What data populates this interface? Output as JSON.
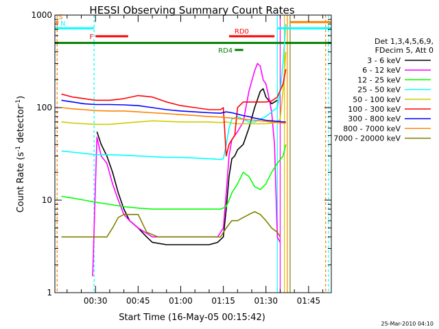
{
  "chart_data": {
    "type": "line",
    "title": "HESSI Observing Summary Count Rates",
    "xlabel": "Start Time (16-May-05 00:15:42)",
    "ylabel": "Count Rate (s",
    "ylabel_sup": "-1",
    "ylabel_tail": " detector",
    "ylabel_sup2": "-1",
    "ylabel_end": ")",
    "yscale": "log",
    "ylim": [
      1,
      1000
    ],
    "ytick_labels": [
      "1",
      "10",
      "100",
      "1000"
    ],
    "ytick_values": [
      1,
      10,
      100,
      1000
    ],
    "xlim": [
      15.7,
      113
    ],
    "xtick_labels": [
      "00:30",
      "00:45",
      "01:00",
      "01:15",
      "01:30",
      "01:45"
    ],
    "xtick_values": [
      30,
      45,
      60,
      75,
      90,
      105
    ],
    "grid": false,
    "legend_position": "right",
    "legend_header": [
      "Det 1,3,4,5,6,9,",
      "FDecim 5, Att 0"
    ],
    "footer_date": "25-Mar-2010 04:10",
    "series": [
      {
        "name": "3 - 6 keV",
        "color": "#000000",
        "points": [
          [
            30.5,
            55
          ],
          [
            32,
            40
          ],
          [
            34,
            30
          ],
          [
            36,
            20
          ],
          [
            38,
            12
          ],
          [
            40,
            8
          ],
          [
            42,
            6
          ],
          [
            45,
            5
          ],
          [
            48,
            4
          ],
          [
            50,
            3.5
          ],
          [
            55,
            3.3
          ],
          [
            60,
            3.3
          ],
          [
            65,
            3.3
          ],
          [
            70,
            3.3
          ],
          [
            73,
            3.5
          ],
          [
            75,
            4
          ],
          [
            76,
            8
          ],
          [
            77,
            18
          ],
          [
            78,
            28
          ],
          [
            79,
            30
          ],
          [
            80,
            35
          ],
          [
            82,
            40
          ],
          [
            84,
            60
          ],
          [
            86,
            100
          ],
          [
            88,
            150
          ],
          [
            89,
            160
          ],
          [
            90,
            130
          ],
          [
            91,
            120
          ],
          [
            92,
            110
          ],
          [
            93,
            115
          ],
          [
            94,
            120
          ]
        ]
      },
      {
        "name": "6 - 12 keV",
        "color": "#ff00ff",
        "points": [
          [
            29,
            1.5
          ],
          [
            30.5,
            48
          ],
          [
            32,
            30
          ],
          [
            34,
            25
          ],
          [
            36,
            15
          ],
          [
            38,
            10
          ],
          [
            40,
            7
          ],
          [
            42,
            6
          ],
          [
            45,
            5
          ],
          [
            50,
            4
          ],
          [
            55,
            4
          ],
          [
            60,
            4
          ],
          [
            65,
            4
          ],
          [
            70,
            4
          ],
          [
            73,
            4
          ],
          [
            75,
            5
          ],
          [
            76,
            12
          ],
          [
            77,
            30
          ],
          [
            78,
            45
          ],
          [
            80,
            55
          ],
          [
            82,
            70
          ],
          [
            84,
            150
          ],
          [
            86,
            250
          ],
          [
            87,
            300
          ],
          [
            88,
            280
          ],
          [
            89,
            200
          ],
          [
            90,
            180
          ],
          [
            91,
            130
          ],
          [
            92,
            90
          ],
          [
            93,
            40
          ],
          [
            94,
            4
          ],
          [
            95,
            3.5
          ]
        ]
      },
      {
        "name": "12 - 25 keV",
        "color": "#00ff00",
        "points": [
          [
            18,
            11
          ],
          [
            22,
            10.5
          ],
          [
            26,
            10
          ],
          [
            30,
            9.5
          ],
          [
            35,
            9
          ],
          [
            40,
            8.5
          ],
          [
            45,
            8.2
          ],
          [
            50,
            8
          ],
          [
            55,
            8
          ],
          [
            60,
            8
          ],
          [
            65,
            8
          ],
          [
            70,
            8
          ],
          [
            74,
            8
          ],
          [
            76,
            8.5
          ],
          [
            77,
            10
          ],
          [
            78,
            12
          ],
          [
            80,
            15
          ],
          [
            82,
            20
          ],
          [
            84,
            18
          ],
          [
            86,
            14
          ],
          [
            88,
            13
          ],
          [
            90,
            15
          ],
          [
            92,
            20
          ],
          [
            94,
            25
          ],
          [
            96,
            30
          ],
          [
            97,
            40
          ]
        ]
      },
      {
        "name": "25 - 50 keV",
        "color": "#00ffff",
        "points": [
          [
            18,
            34
          ],
          [
            22,
            33
          ],
          [
            26,
            32
          ],
          [
            30,
            31
          ],
          [
            35,
            31
          ],
          [
            40,
            30.5
          ],
          [
            45,
            30
          ],
          [
            50,
            29.5
          ],
          [
            55,
            29
          ],
          [
            60,
            29
          ],
          [
            65,
            28.5
          ],
          [
            70,
            28
          ],
          [
            74,
            27.5
          ],
          [
            75,
            28
          ],
          [
            76,
            40
          ],
          [
            77,
            60
          ],
          [
            78,
            75
          ],
          [
            80,
            80
          ],
          [
            82,
            75
          ],
          [
            84,
            70
          ],
          [
            86,
            70
          ],
          [
            88,
            75
          ],
          [
            90,
            80
          ],
          [
            92,
            90
          ],
          [
            94,
            100
          ],
          [
            95,
            150
          ],
          [
            96,
            300
          ],
          [
            97,
            800
          ]
        ]
      },
      {
        "name": "50 - 100 keV",
        "color": "#cccc00",
        "points": [
          [
            18,
            70
          ],
          [
            22,
            68
          ],
          [
            26,
            67
          ],
          [
            30,
            66
          ],
          [
            35,
            66
          ],
          [
            40,
            68
          ],
          [
            45,
            70
          ],
          [
            50,
            72
          ],
          [
            55,
            71
          ],
          [
            60,
            70
          ],
          [
            65,
            70
          ],
          [
            70,
            70
          ],
          [
            74,
            69
          ],
          [
            76,
            70
          ],
          [
            78,
            68
          ],
          [
            80,
            67
          ],
          [
            82,
            67
          ],
          [
            84,
            67
          ],
          [
            86,
            67
          ],
          [
            88,
            67
          ],
          [
            90,
            67
          ],
          [
            92,
            68
          ],
          [
            94,
            70
          ],
          [
            95,
            75
          ],
          [
            96,
            150
          ],
          [
            97,
            400
          ]
        ]
      },
      {
        "name": "100 - 300 keV",
        "color": "#ff0000",
        "points": [
          [
            18,
            140
          ],
          [
            22,
            130
          ],
          [
            26,
            125
          ],
          [
            30,
            120
          ],
          [
            35,
            120
          ],
          [
            40,
            125
          ],
          [
            45,
            135
          ],
          [
            50,
            130
          ],
          [
            55,
            115
          ],
          [
            60,
            105
          ],
          [
            65,
            100
          ],
          [
            70,
            95
          ],
          [
            74,
            95
          ],
          [
            75,
            100
          ],
          [
            76,
            30
          ],
          [
            77,
            40
          ],
          [
            78,
            45
          ],
          [
            79,
            50
          ],
          [
            80,
            100
          ],
          [
            82,
            115
          ],
          [
            84,
            115
          ],
          [
            86,
            115
          ],
          [
            88,
            115
          ],
          [
            90,
            115
          ],
          [
            92,
            118
          ],
          [
            94,
            130
          ],
          [
            96,
            180
          ],
          [
            97,
            260
          ]
        ]
      },
      {
        "name": "300 - 800 keV",
        "color": "#0000ff",
        "points": [
          [
            18,
            120
          ],
          [
            22,
            115
          ],
          [
            26,
            110
          ],
          [
            30,
            108
          ],
          [
            35,
            108
          ],
          [
            40,
            107
          ],
          [
            45,
            105
          ],
          [
            50,
            100
          ],
          [
            55,
            95
          ],
          [
            60,
            92
          ],
          [
            65,
            90
          ],
          [
            70,
            88
          ],
          [
            74,
            87
          ],
          [
            76,
            90
          ],
          [
            78,
            88
          ],
          [
            80,
            85
          ],
          [
            82,
            82
          ],
          [
            84,
            80
          ],
          [
            86,
            77
          ],
          [
            88,
            75
          ],
          [
            90,
            73
          ],
          [
            92,
            72
          ],
          [
            94,
            71
          ],
          [
            96,
            70
          ],
          [
            97,
            70
          ]
        ]
      },
      {
        "name": "800 - 7000 keV",
        "color": "#ff8000",
        "points": [
          [
            18,
            100
          ],
          [
            22,
            97
          ],
          [
            26,
            95
          ],
          [
            30,
            93
          ],
          [
            35,
            92
          ],
          [
            40,
            92
          ],
          [
            45,
            90
          ],
          [
            50,
            88
          ],
          [
            55,
            86
          ],
          [
            60,
            84
          ],
          [
            65,
            82
          ],
          [
            70,
            80
          ],
          [
            74,
            79
          ],
          [
            76,
            78
          ],
          [
            78,
            77
          ],
          [
            80,
            76
          ],
          [
            82,
            75
          ],
          [
            84,
            74
          ],
          [
            86,
            73
          ],
          [
            88,
            72
          ],
          [
            90,
            71
          ],
          [
            92,
            70
          ],
          [
            94,
            69
          ],
          [
            96,
            68
          ],
          [
            97,
            68
          ]
        ]
      },
      {
        "name": "7000 - 20000 keV",
        "color": "#808000",
        "points": [
          [
            18,
            4
          ],
          [
            22,
            4
          ],
          [
            26,
            4
          ],
          [
            30,
            4
          ],
          [
            34,
            4
          ],
          [
            36,
            5
          ],
          [
            38,
            6.5
          ],
          [
            40,
            7
          ],
          [
            42,
            7
          ],
          [
            45,
            7
          ],
          [
            48,
            4.5
          ],
          [
            52,
            4
          ],
          [
            55,
            4
          ],
          [
            60,
            4
          ],
          [
            65,
            4
          ],
          [
            70,
            4
          ],
          [
            74,
            4
          ],
          [
            76,
            5
          ],
          [
            78,
            6
          ],
          [
            80,
            6
          ],
          [
            82,
            6.5
          ],
          [
            84,
            7
          ],
          [
            86,
            7.5
          ],
          [
            88,
            7
          ],
          [
            90,
            6
          ],
          [
            92,
            5
          ],
          [
            94,
            4.5
          ],
          [
            95,
            4
          ]
        ]
      }
    ],
    "flags": [
      {
        "label": "S",
        "color": "#ff8000",
        "y": 840,
        "x_start": 16,
        "x_end": 17
      },
      {
        "label": "N",
        "color": "#00ffff",
        "y": 720,
        "x_start": 15.7,
        "x_end": 29.5
      },
      {
        "label": "F",
        "color": "#ff0000",
        "y": 590,
        "x_start": 30,
        "x_end": 41.5
      },
      {
        "label": "RD0",
        "color": "#ff0000",
        "y": 590,
        "x_start": 77,
        "x_end": 93
      },
      {
        "label": "RD4",
        "color": "#008000",
        "y": 420,
        "x_start": 79,
        "x_end": 82
      },
      {
        "label": "",
        "color": "#008000",
        "y": 500,
        "x_start": 15.7,
        "x_end": 113
      },
      {
        "label": "",
        "color": "#00ffff",
        "y": 720,
        "x_start": 94,
        "x_end": 113
      },
      {
        "label": "",
        "color": "#ff8000",
        "y": 840,
        "x_start": 98.5,
        "x_end": 113
      }
    ],
    "vlines": [
      {
        "x": 16.5,
        "color": "#ff8000",
        "dashed": true
      },
      {
        "x": 29.5,
        "color": "#00ffff",
        "dashed": true
      },
      {
        "x": 94,
        "color": "#00ffff",
        "dashed": false
      },
      {
        "x": 95,
        "color": "#ff00ff",
        "dashed": false
      },
      {
        "x": 96.5,
        "color": "#cccc00",
        "dashed": false
      },
      {
        "x": 97.5,
        "color": "#ff8000",
        "dashed": false
      },
      {
        "x": 98.5,
        "color": "#808000",
        "dashed": false
      },
      {
        "x": 111,
        "color": "#ff8000",
        "dashed": true
      },
      {
        "x": 112,
        "color": "#00ffff",
        "dashed": true
      }
    ]
  }
}
